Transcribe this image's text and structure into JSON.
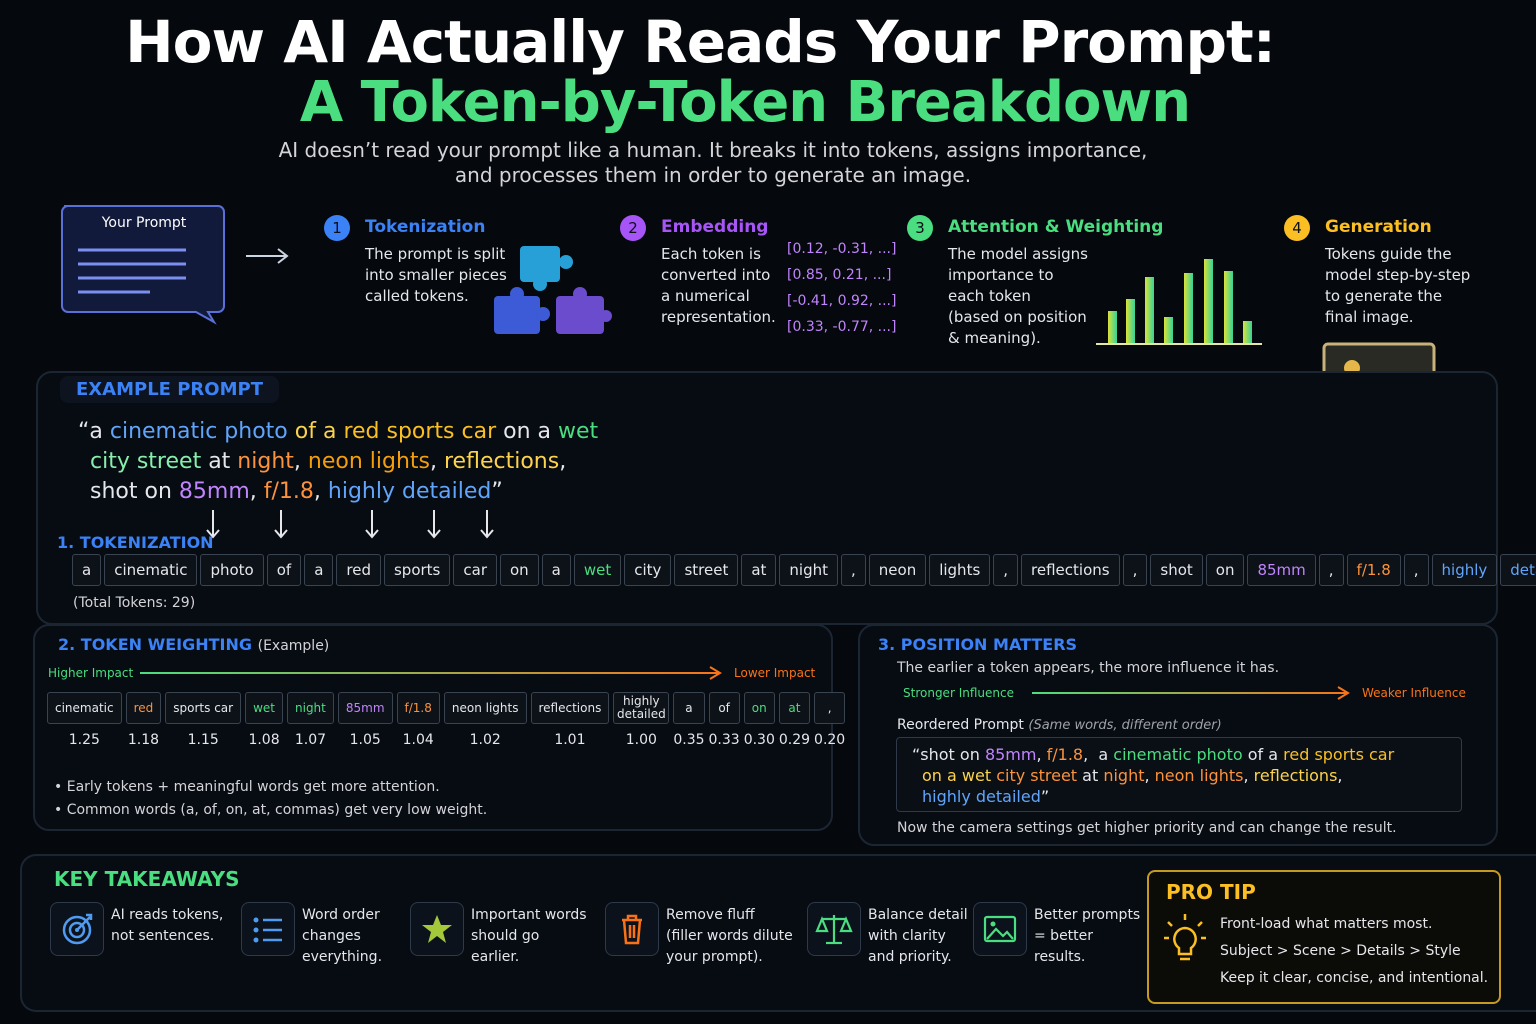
{
  "header": {
    "title_line1": "How AI Actually Reads Your Prompt:",
    "title_line2": "A Token-by-Token Breakdown",
    "subtitle_line1": "AI doesn’t read your prompt like a human. It breaks it into tokens, assigns importance,",
    "subtitle_line2": "and processes them in order to generate an image."
  },
  "prompt_card": {
    "label": "Your Prompt"
  },
  "steps": [
    {
      "number": 1,
      "title": "Tokenization",
      "color": "#3b82f6",
      "text": [
        "The prompt is split",
        "into smaller pieces",
        "called tokens."
      ]
    },
    {
      "number": 2,
      "title": "Embedding",
      "color": "#a855f7",
      "text": [
        "Each token is",
        "converted into",
        "a numerical",
        "representation."
      ]
    },
    {
      "number": 3,
      "title": "Attention & Weighting",
      "color": "#4ade80",
      "text": [
        "The model assigns",
        "importance to",
        "each token",
        "(based on position",
        "& meaning)."
      ]
    },
    {
      "number": 4,
      "title": "Generation",
      "color": "#fbbf24",
      "text": [
        "Tokens guide the",
        "model step-by-step",
        "to generate the",
        "final image."
      ]
    }
  ],
  "embedding_vectors": [
    "[0.12, -0.31, ...]",
    "[0.85, 0.21, ...]",
    "[-0.41, 0.92, ...]",
    "[0.33, -0.77, ...]"
  ],
  "example": {
    "label": "EXAMPLE PROMPT",
    "lines": [
      [
        {
          "text": "“a ",
          "color": "#e5e7eb"
        },
        {
          "text": "cinematic photo",
          "color": "#60a5fa"
        },
        {
          "text": " of a ",
          "color": "#fcd34d"
        },
        {
          "text": "red sports car",
          "color": "#fbbf24"
        },
        {
          "text": " on a ",
          "color": "#e5e7eb"
        },
        {
          "text": "wet",
          "color": "#4ade80"
        }
      ],
      [
        {
          "text": "city street",
          "color": "#86efac"
        },
        {
          "text": " at ",
          "color": "#e5e7eb"
        },
        {
          "text": "night",
          "color": "#fb923c"
        },
        {
          "text": ", ",
          "color": "#e5e7eb"
        },
        {
          "text": "neon lights",
          "color": "#f59e0b"
        },
        {
          "text": ", ",
          "color": "#e5e7eb"
        },
        {
          "text": "reflections",
          "color": "#fcd34d"
        },
        {
          "text": ",",
          "color": "#e5e7eb"
        }
      ],
      [
        {
          "text": "shot on ",
          "color": "#e5e7eb"
        },
        {
          "text": "85mm",
          "color": "#c084fc"
        },
        {
          "text": ", ",
          "color": "#e5e7eb"
        },
        {
          "text": "f/1.8",
          "color": "#fb923c"
        },
        {
          "text": ", ",
          "color": "#e5e7eb"
        },
        {
          "text": "highly detailed",
          "color": "#60a5fa"
        },
        {
          "text": "”",
          "color": "#e5e7eb"
        }
      ]
    ]
  },
  "tokenization": {
    "title": "1. TOKENIZATION",
    "tokens": [
      {
        "text": "a",
        "color": "#e5e7eb"
      },
      {
        "text": "cinematic",
        "color": "#e5e7eb"
      },
      {
        "text": "photo",
        "color": "#e5e7eb"
      },
      {
        "text": "of",
        "color": "#e5e7eb"
      },
      {
        "text": "a",
        "color": "#e5e7eb"
      },
      {
        "text": "red",
        "color": "#e5e7eb"
      },
      {
        "text": "sports",
        "color": "#e5e7eb"
      },
      {
        "text": "car",
        "color": "#e5e7eb"
      },
      {
        "text": "on",
        "color": "#e5e7eb"
      },
      {
        "text": "a",
        "color": "#e5e7eb"
      },
      {
        "text": "wet",
        "color": "#4ade80"
      },
      {
        "text": "city",
        "color": "#e5e7eb"
      },
      {
        "text": "street",
        "color": "#e5e7eb"
      },
      {
        "text": "at",
        "color": "#e5e7eb"
      },
      {
        "text": "night",
        "color": "#e5e7eb"
      },
      {
        "text": ",",
        "color": "#e5e7eb"
      },
      {
        "text": "neon",
        "color": "#e5e7eb"
      },
      {
        "text": "lights",
        "color": "#e5e7eb"
      },
      {
        "text": ",",
        "color": "#e5e7eb"
      },
      {
        "text": "reflections",
        "color": "#e5e7eb"
      },
      {
        "text": ",",
        "color": "#e5e7eb"
      },
      {
        "text": "shot",
        "color": "#e5e7eb"
      },
      {
        "text": "on",
        "color": "#e5e7eb"
      },
      {
        "text": "85mm",
        "color": "#c084fc"
      },
      {
        "text": ",",
        "color": "#e5e7eb"
      },
      {
        "text": "f/1.8",
        "color": "#fb923c"
      },
      {
        "text": ",",
        "color": "#e5e7eb"
      },
      {
        "text": "highly",
        "color": "#60a5fa"
      },
      {
        "text": "detailed",
        "color": "#60a5fa"
      }
    ],
    "total": "(Total Tokens: 29)"
  },
  "weighting": {
    "title": "2. TOKEN WEIGHTING",
    "title_note": "(Example)",
    "high": "Higher Impact",
    "low": "Lower Impact",
    "items": [
      {
        "token": "cinematic",
        "weight": "1.25",
        "color": "#e5e7eb"
      },
      {
        "token": "red",
        "weight": "1.18",
        "color": "#fb923c"
      },
      {
        "token": "sports car",
        "weight": "1.15",
        "color": "#e5e7eb"
      },
      {
        "token": "wet",
        "weight": "1.08",
        "color": "#4ade80"
      },
      {
        "token": "night",
        "weight": "1.07",
        "color": "#4ade80"
      },
      {
        "token": "85mm",
        "weight": "1.05",
        "color": "#c084fc"
      },
      {
        "token": "f/1.8",
        "weight": "1.04",
        "color": "#fb923c"
      },
      {
        "token": "neon lights",
        "weight": "1.02",
        "color": "#e5e7eb"
      },
      {
        "token": "reflections",
        "weight": "1.01",
        "color": "#e5e7eb"
      },
      {
        "token": "highly detailed",
        "weight": "1.00",
        "color": "#e5e7eb"
      },
      {
        "token": "a",
        "weight": "0.35",
        "color": "#e5e7eb"
      },
      {
        "token": "of",
        "weight": "0.33",
        "color": "#e5e7eb"
      },
      {
        "token": "on",
        "weight": "0.30",
        "color": "#4ade80"
      },
      {
        "token": "at",
        "weight": "0.29",
        "color": "#4ade80"
      },
      {
        "token": ",",
        "weight": "0.20",
        "color": "#e5e7eb"
      }
    ],
    "bullets": [
      "Early tokens + meaningful words get more attention.",
      "Common words (a, of, on, at, commas) get very low weight."
    ]
  },
  "position": {
    "title": "3. POSITION MATTERS",
    "text": "The earlier a token appears, the more influence it has.",
    "strong": "Stronger Influence",
    "weak": "Weaker Influence",
    "reordered_label": "Reordered Prompt",
    "reordered_note": "(Same words, different order)",
    "lines": [
      [
        {
          "text": "“shot on ",
          "color": "#e5e7eb"
        },
        {
          "text": "85mm",
          "color": "#c084fc"
        },
        {
          "text": ", ",
          "color": "#e5e7eb"
        },
        {
          "text": "f/1.8",
          "color": "#fb923c"
        },
        {
          "text": ",  a ",
          "color": "#e5e7eb"
        },
        {
          "text": "cinematic photo",
          "color": "#4ade80"
        },
        {
          "text": " of a ",
          "color": "#e5e7eb"
        },
        {
          "text": "red sports car",
          "color": "#fbbf24"
        }
      ],
      [
        {
          "text": "on a wet ",
          "color": "#fcd34d"
        },
        {
          "text": "city street",
          "color": "#fb923c"
        },
        {
          "text": " at ",
          "color": "#e5e7eb"
        },
        {
          "text": "night",
          "color": "#fb923c"
        },
        {
          "text": ", ",
          "color": "#e5e7eb"
        },
        {
          "text": "neon lights",
          "color": "#fb923c"
        },
        {
          "text": ", ",
          "color": "#e5e7eb"
        },
        {
          "text": "reflections",
          "color": "#fcd34d"
        },
        {
          "text": ",",
          "color": "#e5e7eb"
        }
      ],
      [
        {
          "text": "highly detailed",
          "color": "#60a5fa"
        },
        {
          "text": "”",
          "color": "#e5e7eb"
        }
      ]
    ],
    "footer": "Now the camera settings get higher priority and can change the result."
  },
  "takeaways": {
    "title": "KEY TAKEAWAYS",
    "items": [
      {
        "lines": [
          "AI reads tokens,",
          "not sentences."
        ]
      },
      {
        "lines": [
          "Word order",
          "changes",
          "everything."
        ]
      },
      {
        "lines": [
          "Important words",
          "should go",
          "earlier."
        ]
      },
      {
        "lines": [
          "Remove fluff",
          "(filler words dilute",
          "your prompt)."
        ]
      },
      {
        "lines": [
          "Balance detail",
          "with clarity",
          "and priority."
        ]
      },
      {
        "lines": [
          "Better prompts",
          "= better",
          "results."
        ]
      }
    ]
  },
  "pro_tip": {
    "title": "PRO TIP",
    "lines": [
      "Front-load what matters most.",
      "Subject > Scene > Details > Style",
      "Keep it clear, concise, and intentional."
    ]
  }
}
